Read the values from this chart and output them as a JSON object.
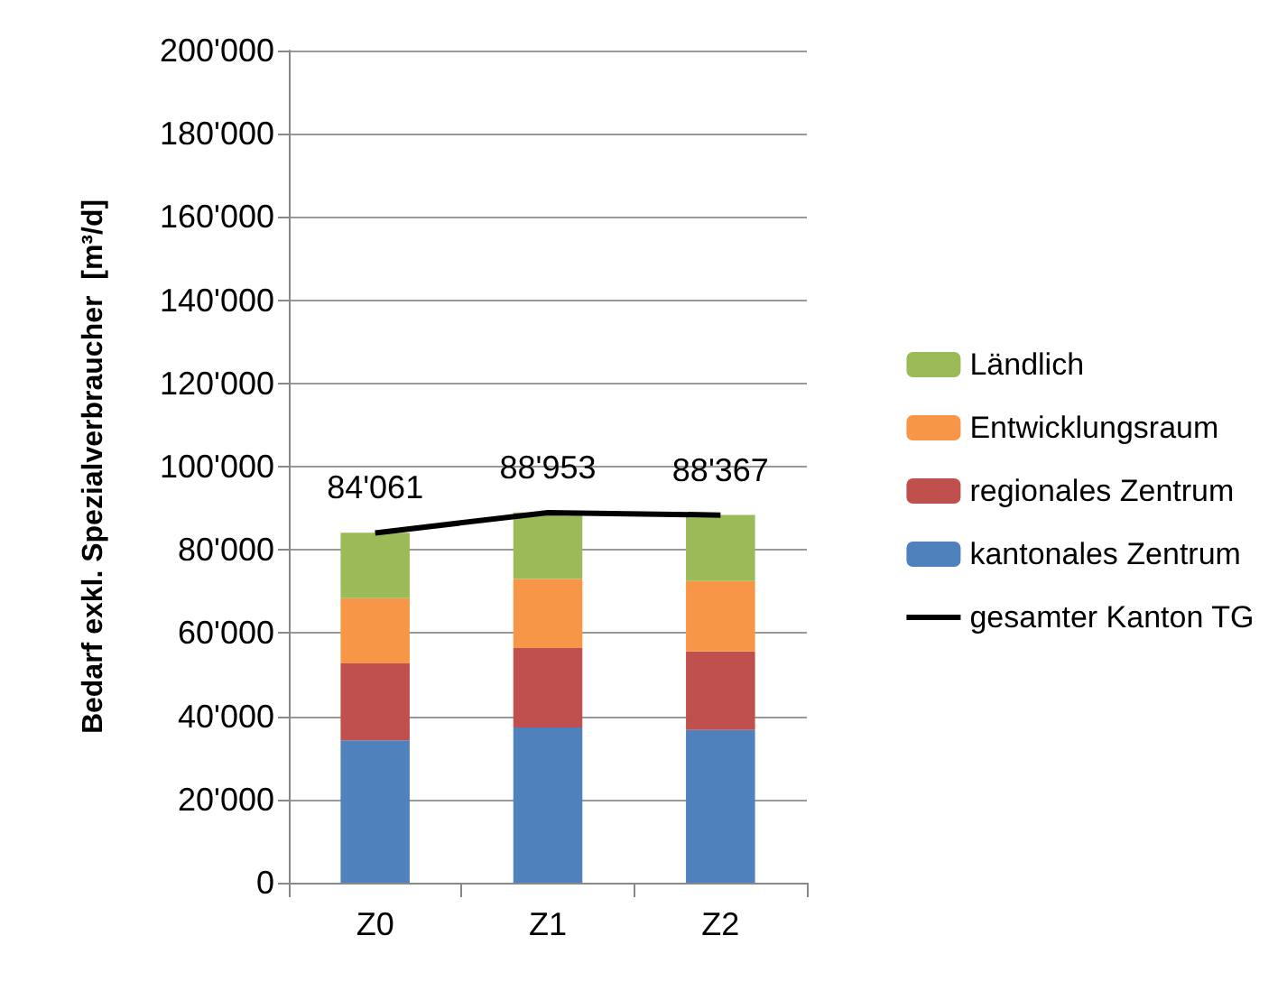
{
  "chart_data": {
    "type": "bar",
    "stacked": true,
    "ylabel": "Bedarf exkl. Spezialverbraucher  [m³/d]",
    "categories": [
      "Z0",
      "Z1",
      "Z2"
    ],
    "series": [
      {
        "name": "kantonales Zentrum",
        "color": "#4f81bd",
        "values": [
          34200,
          37300,
          36700
        ]
      },
      {
        "name": "regionales Zentrum",
        "color": "#c0504d",
        "values": [
          18500,
          19100,
          18900
        ]
      },
      {
        "name": "Entwicklungsraum",
        "color": "#f79646",
        "values": [
          15700,
          16600,
          16900
        ]
      },
      {
        "name": "Ländlich",
        "color": "#9bbb59",
        "values": [
          15700,
          16000,
          15900
        ]
      },
      {
        "name": "gesamter Kanton TG",
        "type": "line",
        "color": "#000000",
        "values": [
          84061,
          88953,
          88367
        ],
        "value_labels": [
          "84'061",
          "88'953",
          "88'367"
        ]
      }
    ],
    "ylim": [
      0,
      200000
    ],
    "yticks": [
      {
        "value": 0,
        "label": "0"
      },
      {
        "value": 20000,
        "label": "20'000"
      },
      {
        "value": 40000,
        "label": "40'000"
      },
      {
        "value": 60000,
        "label": "60'000"
      },
      {
        "value": 80000,
        "label": "80'000"
      },
      {
        "value": 100000,
        "label": "100'000"
      },
      {
        "value": 120000,
        "label": "120'000"
      },
      {
        "value": 140000,
        "label": "140'000"
      },
      {
        "value": 160000,
        "label": "160'000"
      },
      {
        "value": 180000,
        "label": "180'000"
      },
      {
        "value": 200000,
        "label": "200'000"
      }
    ],
    "grid": "y",
    "legend": "right",
    "marker": "none",
    "line_style": "solid"
  }
}
